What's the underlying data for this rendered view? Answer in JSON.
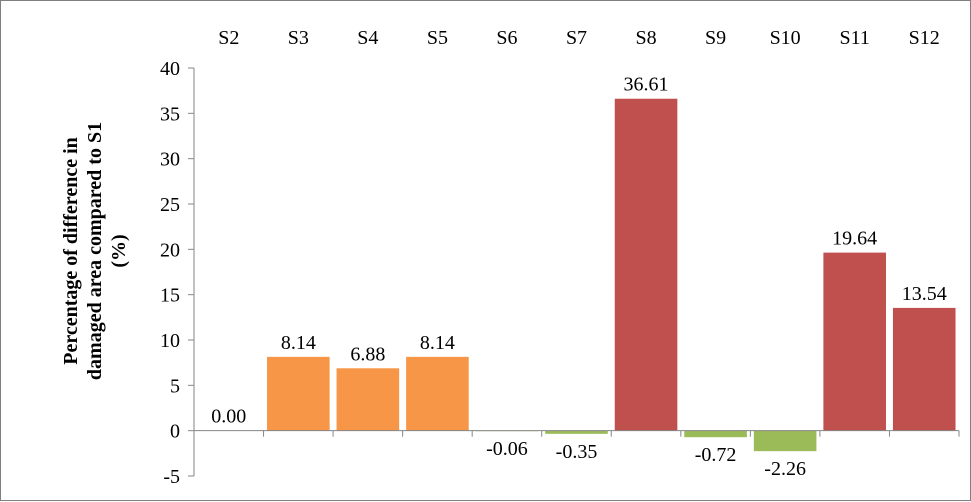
{
  "chart_data": {
    "type": "bar",
    "categories": [
      "S2",
      "S3",
      "S4",
      "S5",
      "S6",
      "S7",
      "S8",
      "S9",
      "S10",
      "S11",
      "S12"
    ],
    "values": [
      0.0,
      8.14,
      6.88,
      8.14,
      -0.06,
      -0.35,
      36.61,
      -0.72,
      -2.26,
      19.64,
      13.54
    ],
    "value_labels": [
      "0.00",
      "8.14",
      "6.88",
      "8.14",
      "-0.06",
      "-0.35",
      "36.61",
      "-0.72",
      "-2.26",
      "19.64",
      "13.54"
    ],
    "bar_colors": [
      "#f79646",
      "#f79646",
      "#f79646",
      "#f79646",
      "#9bbb59",
      "#9bbb59",
      "#c0504d",
      "#9bbb59",
      "#9bbb59",
      "#c0504d",
      "#c0504d"
    ],
    "ylabel_lines": [
      "Percentage of difference in",
      "damaged area compared to S1",
      "(%)"
    ],
    "ylim": [
      -5,
      40
    ],
    "yticks": [
      -5,
      0,
      5,
      10,
      15,
      20,
      25,
      30,
      35,
      40
    ],
    "category_axis_position": "top",
    "grid": false,
    "legend": "none"
  }
}
